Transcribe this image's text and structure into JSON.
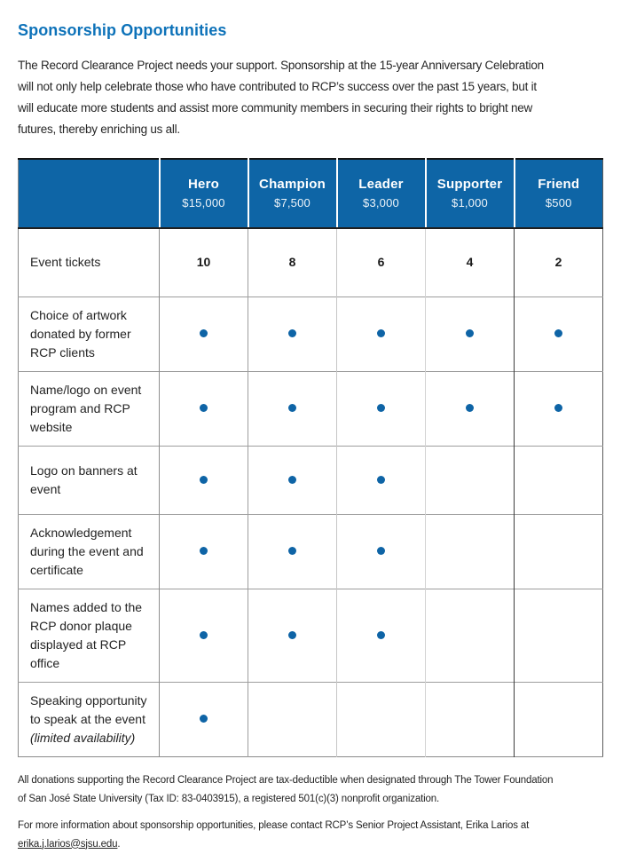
{
  "colors": {
    "title_blue": "#0d72b9",
    "header_blue": "#0e65a6",
    "dot_blue": "#0e64a6"
  },
  "header": {
    "title": "Sponsorship Opportunities"
  },
  "intro": {
    "lines": [
      "The Record Clearance Project needs your support. Sponsorship at the 15-year Anniversary Celebration",
      "will not only help celebrate those who have contributed to RCP’s success over the past 15 years, but it",
      "will educate more students and assist more community members in securing their rights to bright new",
      "futures, thereby enriching us all."
    ]
  },
  "table": {
    "tiers": [
      {
        "name": "Hero",
        "price": "$15,000"
      },
      {
        "name": "Champion",
        "price": "$7,500"
      },
      {
        "name": "Leader",
        "price": "$3,000"
      },
      {
        "name": "Supporter",
        "price": "$1,000"
      },
      {
        "name": "Friend",
        "price": "$500"
      }
    ],
    "rows": [
      {
        "label": "Event tickets",
        "note": "",
        "cells": [
          "10",
          "8",
          "6",
          "4",
          "2"
        ]
      },
      {
        "label": "Choice of artwork donated by former RCP clients",
        "note": "",
        "cells": [
          "dot",
          "dot",
          "dot",
          "dot",
          "dot"
        ]
      },
      {
        "label": "Name/logo on event program and RCP website",
        "note": "",
        "cells": [
          "dot",
          "dot",
          "dot",
          "dot",
          "dot"
        ]
      },
      {
        "label": "Logo on banners at event",
        "note": "",
        "cells": [
          "dot",
          "dot",
          "dot",
          "",
          ""
        ]
      },
      {
        "label": "Acknowledgement during the event and certificate",
        "note": "",
        "cells": [
          "dot",
          "dot",
          "dot",
          "",
          ""
        ]
      },
      {
        "label": "Names added to the RCP donor plaque displayed at RCP office",
        "note": "",
        "cells": [
          "dot",
          "dot",
          "dot",
          "",
          ""
        ]
      },
      {
        "label": "Speaking opportunity to speak at the event",
        "note": "(limited availability)",
        "cells": [
          "dot",
          "",
          "",
          "",
          ""
        ]
      }
    ]
  },
  "footer": {
    "tax_note_lines": [
      "All donations supporting the Record Clearance Project are tax-deductible when designated through The Tower Foundation",
      "of San José State University (Tax ID: 83-0403915), a registered 501(c)(3) nonprofit organization."
    ],
    "contact_line": "For more information about sponsorship opportunities, please contact RCP’s Senior Project Assistant, Erika Larios at",
    "email": "erika.j.larios@sjsu.edu",
    "email_suffix": "."
  }
}
